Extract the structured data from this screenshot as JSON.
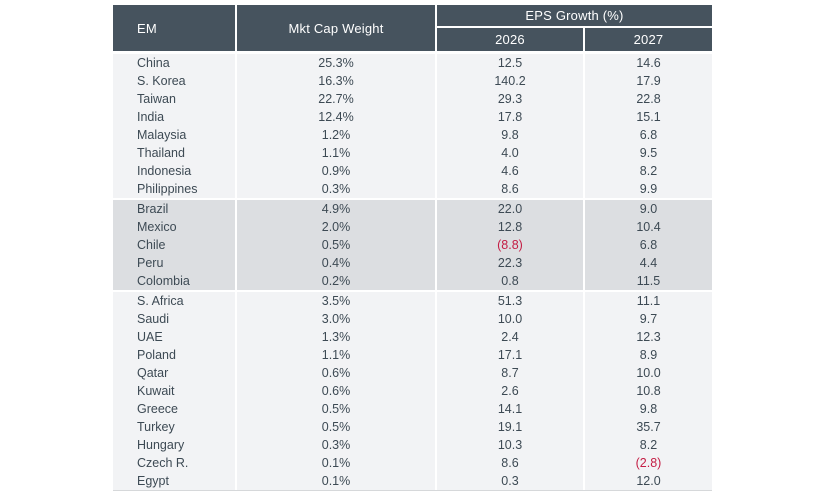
{
  "colors": {
    "header_bg": "#46535e",
    "header_text": "#ffffff",
    "group_light": "#f2f3f5",
    "group_dark": "#dcdee1",
    "body_text": "#3d4a54",
    "negative": "#c41e45"
  },
  "header": {
    "col_em": "EM",
    "col_mktcap": "Mkt Cap Weight",
    "col_eps_group": "EPS Growth (%)",
    "col_2026": "2026",
    "col_2027": "2027"
  },
  "groups": [
    {
      "shade": "light",
      "rows": [
        [
          "China",
          "25.3%",
          "12.5",
          "14.6"
        ],
        [
          "S. Korea",
          "16.3%",
          "140.2",
          "17.9"
        ],
        [
          "Taiwan",
          "22.7%",
          "29.3",
          "22.8"
        ],
        [
          "India",
          "12.4%",
          "17.8",
          "15.1"
        ],
        [
          "Malaysia",
          "1.2%",
          "9.8",
          "6.8"
        ],
        [
          "Thailand",
          "1.1%",
          "4.0",
          "9.5"
        ],
        [
          "Indonesia",
          "0.9%",
          "4.6",
          "8.2"
        ],
        [
          "Philippines",
          "0.3%",
          "8.6",
          "9.9"
        ]
      ]
    },
    {
      "shade": "dark",
      "rows": [
        [
          "Brazil",
          "4.9%",
          "22.0",
          "9.0"
        ],
        [
          "Mexico",
          "2.0%",
          "12.8",
          "10.4"
        ],
        [
          "Chile",
          "0.5%",
          "(8.8)",
          "6.8"
        ],
        [
          "Peru",
          "0.4%",
          "22.3",
          "4.4"
        ],
        [
          "Colombia",
          "0.2%",
          "0.8",
          "11.5"
        ]
      ]
    },
    {
      "shade": "light",
      "rows": [
        [
          "S. Africa",
          "3.5%",
          "51.3",
          "11.1"
        ],
        [
          "Saudi",
          "3.0%",
          "10.0",
          "9.7"
        ],
        [
          "UAE",
          "1.3%",
          "2.4",
          "12.3"
        ],
        [
          "Poland",
          "1.1%",
          "17.1",
          "8.9"
        ],
        [
          "Qatar",
          "0.6%",
          "8.7",
          "10.0"
        ],
        [
          "Kuwait",
          "0.6%",
          "2.6",
          "10.8"
        ],
        [
          "Greece",
          "0.5%",
          "14.1",
          "9.8"
        ],
        [
          "Turkey",
          "0.5%",
          "19.1",
          "35.7"
        ],
        [
          "Hungary",
          "0.3%",
          "10.3",
          "8.2"
        ],
        [
          "Czech R.",
          "0.1%",
          "8.6",
          "(2.8)"
        ],
        [
          "Egypt",
          "0.1%",
          "0.3",
          "12.0"
        ]
      ]
    }
  ],
  "chart_data": {
    "type": "table",
    "title": "EM Mkt Cap Weight and EPS Growth (%)",
    "columns": [
      "EM",
      "Mkt Cap Weight (%)",
      "EPS Growth 2026 (%)",
      "EPS Growth 2027 (%)"
    ],
    "rows": [
      [
        "China",
        25.3,
        12.5,
        14.6
      ],
      [
        "S. Korea",
        16.3,
        140.2,
        17.9
      ],
      [
        "Taiwan",
        22.7,
        29.3,
        22.8
      ],
      [
        "India",
        12.4,
        17.8,
        15.1
      ],
      [
        "Malaysia",
        1.2,
        9.8,
        6.8
      ],
      [
        "Thailand",
        1.1,
        4.0,
        9.5
      ],
      [
        "Indonesia",
        0.9,
        4.6,
        8.2
      ],
      [
        "Philippines",
        0.3,
        8.6,
        9.9
      ],
      [
        "Brazil",
        4.9,
        22.0,
        9.0
      ],
      [
        "Mexico",
        2.0,
        12.8,
        10.4
      ],
      [
        "Chile",
        0.5,
        -8.8,
        6.8
      ],
      [
        "Peru",
        0.4,
        22.3,
        4.4
      ],
      [
        "Colombia",
        0.2,
        0.8,
        11.5
      ],
      [
        "S. Africa",
        3.5,
        51.3,
        11.1
      ],
      [
        "Saudi",
        3.0,
        10.0,
        9.7
      ],
      [
        "UAE",
        1.3,
        2.4,
        12.3
      ],
      [
        "Poland",
        1.1,
        17.1,
        8.9
      ],
      [
        "Qatar",
        0.6,
        8.7,
        10.0
      ],
      [
        "Kuwait",
        0.6,
        2.6,
        10.8
      ],
      [
        "Greece",
        0.5,
        14.1,
        9.8
      ],
      [
        "Turkey",
        0.5,
        19.1,
        35.7
      ],
      [
        "Hungary",
        0.3,
        10.3,
        8.2
      ],
      [
        "Czech R.",
        0.1,
        8.6,
        -2.8
      ],
      [
        "Egypt",
        0.1,
        0.3,
        12.0
      ]
    ],
    "notes": "Negative values rendered in red within parentheses"
  }
}
